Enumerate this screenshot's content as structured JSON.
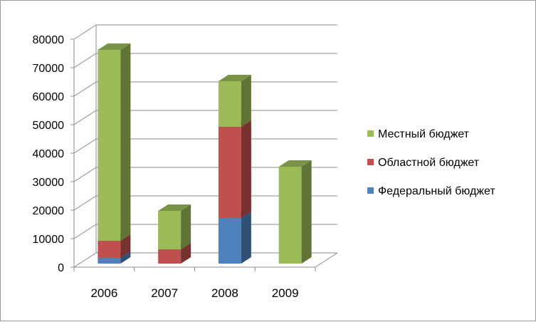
{
  "chart_data": {
    "type": "bar",
    "stacked": true,
    "three_d": true,
    "categories": [
      "2006",
      "2007",
      "2008",
      "2009"
    ],
    "series": [
      {
        "name": "Федеральный бюджет",
        "values": [
          2000,
          0,
          16000,
          0
        ],
        "color": "#4f81bd"
      },
      {
        "name": "Областной бюджет",
        "values": [
          6000,
          5000,
          32000,
          0
        ],
        "color": "#c0504d"
      },
      {
        "name": "Местный бюджет",
        "values": [
          67000,
          13500,
          16000,
          34000
        ],
        "color": "#9bbb59"
      }
    ],
    "yticks": [
      "0",
      "10000",
      "20000",
      "30000",
      "40000",
      "50000",
      "60000",
      "70000",
      "80000"
    ],
    "ylim": [
      0,
      80000
    ],
    "grid": true,
    "legend": {
      "placement": "right",
      "entries": [
        "Местный бюджет",
        "Областной бюджет",
        "Федеральный бюджет"
      ]
    }
  }
}
